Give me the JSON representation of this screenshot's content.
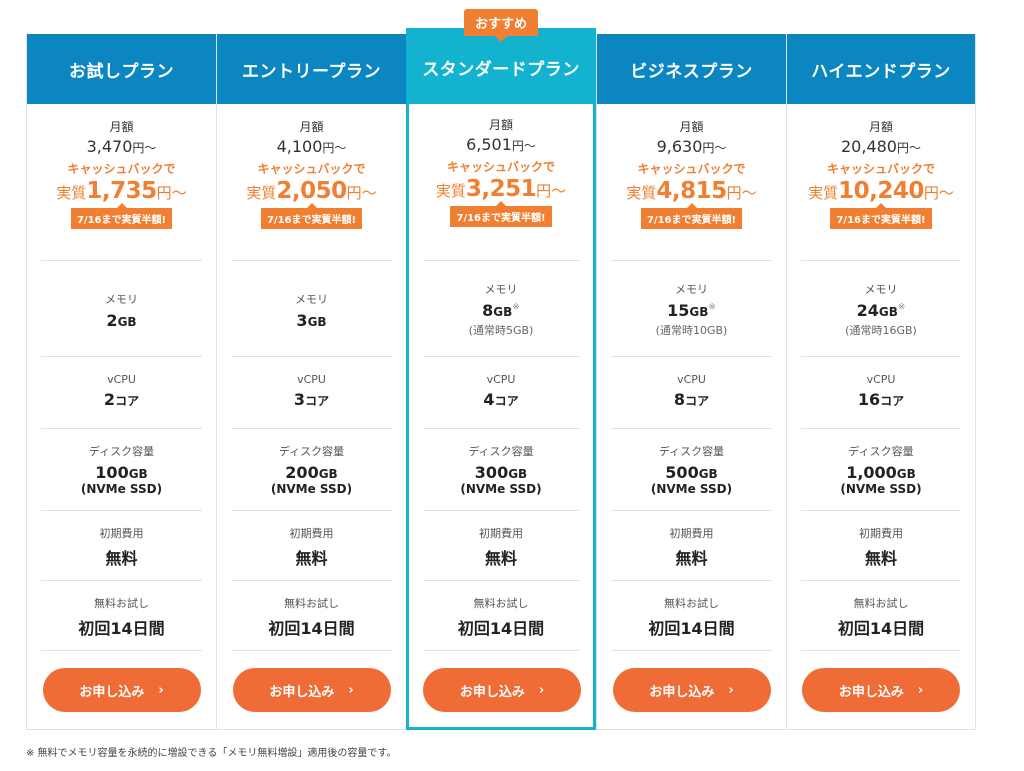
{
  "badge": "おすすめ",
  "labels": {
    "monthly": "月額",
    "yen_suffix": "円〜",
    "cashback": "キャッシュバックで",
    "effective_prefix": "実質",
    "half_tag": "7/16まで実質半額!",
    "memory": "メモリ",
    "vcpu": "vCPU",
    "disk": "ディスク容量",
    "initial_fee": "初期費用",
    "free_trial": "無料お試し",
    "apply": "お申し込み",
    "chevron": "›"
  },
  "plans": [
    {
      "name": "お試しプラン",
      "monthly": "3,470",
      "effective": "1,735",
      "memory": "2",
      "memory_unit": "GB",
      "memory_star": "",
      "memory_note": "",
      "vcpu": "2",
      "vcpu_unit": "コア",
      "disk": "100",
      "disk_unit": "GB",
      "disk_type": "(NVMe SSD)",
      "fee": "無料",
      "trial": "初回14日間"
    },
    {
      "name": "エントリープラン",
      "monthly": "4,100",
      "effective": "2,050",
      "memory": "3",
      "memory_unit": "GB",
      "memory_star": "",
      "memory_note": "",
      "vcpu": "3",
      "vcpu_unit": "コア",
      "disk": "200",
      "disk_unit": "GB",
      "disk_type": "(NVMe SSD)",
      "fee": "無料",
      "trial": "初回14日間"
    },
    {
      "name": "スタンダードプラン",
      "monthly": "6,501",
      "effective": "3,251",
      "memory": "8",
      "memory_unit": "GB",
      "memory_star": "※",
      "memory_note": "(通常時5GB)",
      "vcpu": "4",
      "vcpu_unit": "コア",
      "disk": "300",
      "disk_unit": "GB",
      "disk_type": "(NVMe SSD)",
      "fee": "無料",
      "trial": "初回14日間"
    },
    {
      "name": "ビジネスプラン",
      "monthly": "9,630",
      "effective": "4,815",
      "memory": "15",
      "memory_unit": "GB",
      "memory_star": "※",
      "memory_note": "(通常時10GB)",
      "vcpu": "8",
      "vcpu_unit": "コア",
      "disk": "500",
      "disk_unit": "GB",
      "disk_type": "(NVMe SSD)",
      "fee": "無料",
      "trial": "初回14日間"
    },
    {
      "name": "ハイエンドプラン",
      "monthly": "20,480",
      "effective": "10,240",
      "memory": "24",
      "memory_unit": "GB",
      "memory_star": "※",
      "memory_note": "(通常時16GB)",
      "vcpu": "16",
      "vcpu_unit": "コア",
      "disk": "1,000",
      "disk_unit": "GB",
      "disk_type": "(NVMe SSD)",
      "fee": "無料",
      "trial": "初回14日間"
    }
  ],
  "footnote": "※ 無料でメモリ容量を永続的に増設できる「メモリ無料増設」適用後の容量です。",
  "colors": {
    "header": "#0b86c1",
    "featured": "#13b3cf",
    "accent": "#f07f32",
    "button": "#ef6c37"
  }
}
